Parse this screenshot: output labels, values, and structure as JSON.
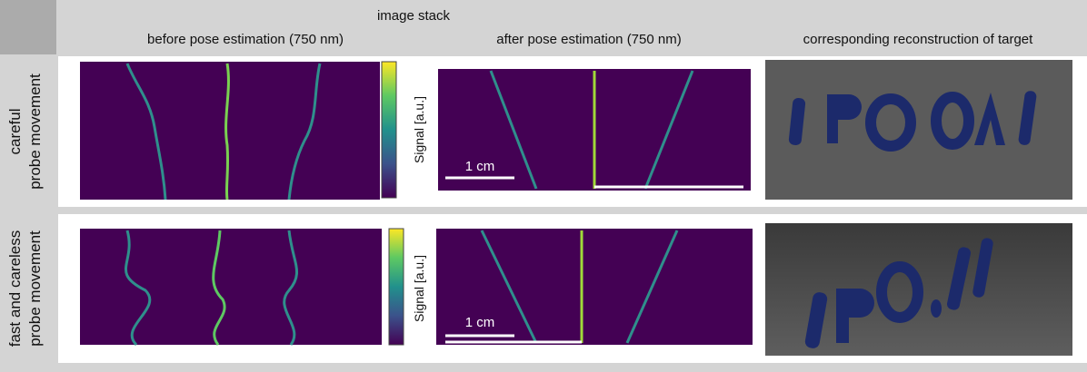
{
  "header": {
    "group_title": "image stack",
    "columns": [
      "before pose estimation (750 nm)",
      "after pose estimation (750 nm)",
      "corresponding reconstruction of target"
    ]
  },
  "rows": [
    {
      "label": [
        "careful",
        "probe movement"
      ],
      "axis_label": "Signal [a.u.]",
      "scale_bar": "1 cm"
    },
    {
      "label": [
        "fast and careless",
        "probe movement"
      ],
      "axis_label": "Signal [a.u.]",
      "scale_bar": "1 cm"
    }
  ]
}
